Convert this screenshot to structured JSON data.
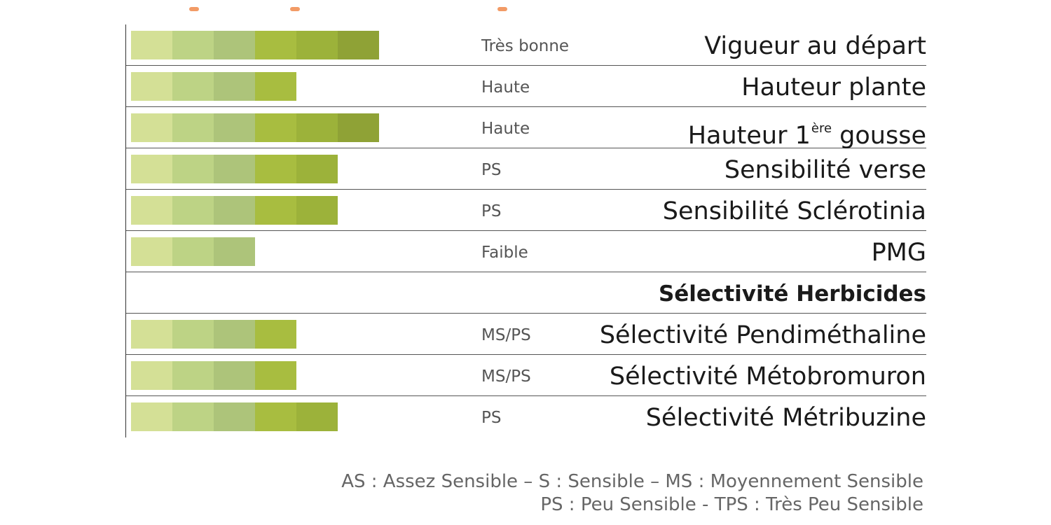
{
  "chart_data": {
    "type": "bar",
    "max_level": 6,
    "segment_colors": [
      "#d4e096",
      "#bdd385",
      "#adc47a",
      "#a8bd40",
      "#9cb23a",
      "#8fa236"
    ],
    "rows": [
      {
        "label": "Vigueur au départ",
        "label_sup": "",
        "label_rest": "",
        "level_text": "Très bonne",
        "value": 6,
        "bold": false
      },
      {
        "label": "Hauteur plante",
        "label_sup": "",
        "label_rest": "",
        "level_text": "Haute",
        "value": 4,
        "bold": false
      },
      {
        "label": "Hauteur 1",
        "label_sup": "ère",
        "label_rest": " gousse",
        "level_text": "Haute",
        "value": 6,
        "bold": false
      },
      {
        "label": "Sensibilité verse",
        "label_sup": "",
        "label_rest": "",
        "level_text": "PS",
        "value": 5,
        "bold": false
      },
      {
        "label": "Sensibilité Sclérotinia",
        "label_sup": "",
        "label_rest": "",
        "level_text": "PS",
        "value": 5,
        "bold": false
      },
      {
        "label": "PMG",
        "label_sup": "",
        "label_rest": "",
        "level_text": "Faible",
        "value": 3,
        "bold": false
      },
      {
        "label": "Sélectivité Herbicides",
        "label_sup": "",
        "label_rest": "",
        "level_text": "",
        "value": 0,
        "bold": true
      },
      {
        "label": "Sélectivité Pendiméthaline",
        "label_sup": "",
        "label_rest": "",
        "level_text": "MS/PS",
        "value": 4,
        "bold": false
      },
      {
        "label": "Sélectivité Métobromuron",
        "label_sup": "",
        "label_rest": "",
        "level_text": "MS/PS",
        "value": 4,
        "bold": false
      },
      {
        "label": "Sélectivité Métribuzine",
        "label_sup": "",
        "label_rest": "",
        "level_text": "PS",
        "value": 5,
        "bold": false
      }
    ]
  },
  "legend": {
    "line1": "AS : Assez Sensible –  S : Sensible – MS : Moyennement Sensible",
    "line2": "PS : Peu Sensible - TPS : Très Peu Sensible"
  }
}
